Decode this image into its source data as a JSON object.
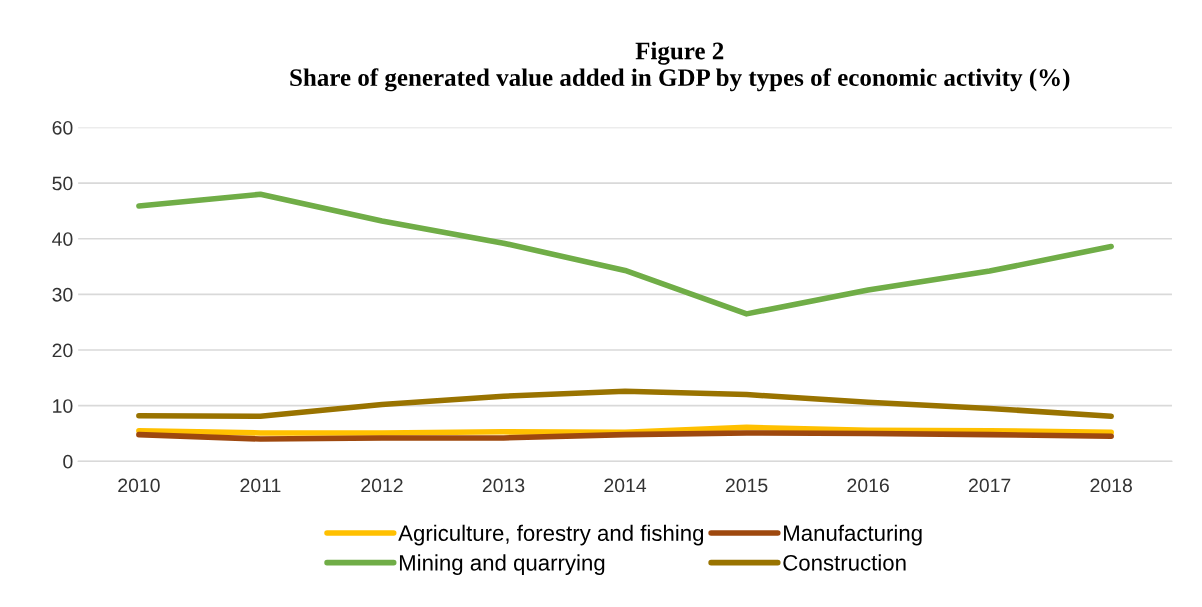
{
  "chart_data": {
    "type": "line",
    "title": "Figure 2\nShare of generated value added in GDP by types of economic activity (%)",
    "categories": [
      "2010",
      "2011",
      "2012",
      "2013",
      "2014",
      "2015",
      "2016",
      "2017",
      "2018"
    ],
    "series": [
      {
        "name": "Agriculture, forestry and fishing",
        "color": "#ffc000",
        "values": [
          5.5,
          5.1,
          5.1,
          5.3,
          5.2,
          6.1,
          5.6,
          5.5,
          5.2
        ]
      },
      {
        "name": "Mining and quarrying",
        "color": "#70ad47",
        "values": [
          45.9,
          48.0,
          43.2,
          39.2,
          34.3,
          26.5,
          30.8,
          34.2,
          38.6
        ]
      },
      {
        "name": "Manufacturing",
        "color": "#9e480e",
        "values": [
          4.8,
          4.0,
          4.2,
          4.2,
          4.8,
          5.1,
          5.0,
          4.8,
          4.5
        ]
      },
      {
        "name": "Construction",
        "color": "#997300",
        "values": [
          8.2,
          8.1,
          10.2,
          11.7,
          12.6,
          12.0,
          10.6,
          9.5,
          8.1
        ]
      }
    ],
    "ylim": [
      0,
      60
    ],
    "yticks": [
      0,
      10,
      20,
      30,
      40,
      50,
      60
    ],
    "grid": "y",
    "legend": "bottom",
    "marker": "none",
    "line_style": "solid"
  }
}
